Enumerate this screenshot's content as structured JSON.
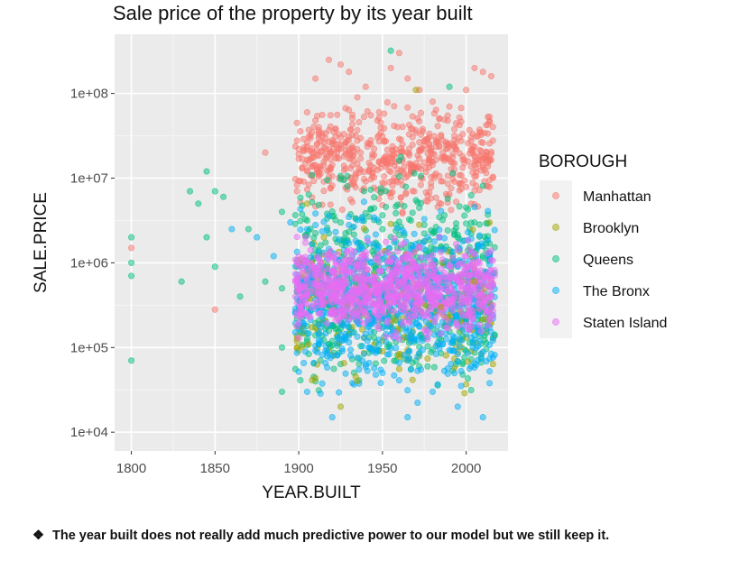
{
  "chart_data": {
    "type": "scatter",
    "title": "Sale price of the property by its year built",
    "xlabel": "YEAR.BUILT",
    "ylabel": "SALE.PRICE",
    "x_ticks": [
      1800,
      1850,
      1900,
      1950,
      2000
    ],
    "x_tick_labels": [
      "1800",
      "1850",
      "1900",
      "1950",
      "2000"
    ],
    "xlim": [
      1790,
      2025
    ],
    "y_scale": "log10",
    "y_ticks": [
      10000,
      100000,
      1000000,
      10000000,
      100000000
    ],
    "y_tick_labels": [
      "1e+04",
      "1e+05",
      "1e+06",
      "1e+07",
      "1e+08"
    ],
    "ylim": [
      6000,
      500000000
    ],
    "grid": true,
    "legend_title": "BOROUGH",
    "legend_position": "right",
    "series": [
      {
        "name": "Manhattan",
        "color": "#F8766D",
        "points": [
          [
            1800,
            1500000
          ],
          [
            1850,
            280000
          ],
          [
            1880,
            20000000
          ],
          [
            1905,
            60000000
          ],
          [
            1910,
            150000000
          ],
          [
            1918,
            250000000
          ],
          [
            1925,
            220000000
          ],
          [
            1930,
            180000000
          ],
          [
            1935,
            90000000
          ],
          [
            1940,
            120000000
          ],
          [
            1948,
            60000000
          ],
          [
            1955,
            200000000
          ],
          [
            1960,
            300000000
          ],
          [
            1965,
            150000000
          ],
          [
            1972,
            110000000
          ],
          [
            1980,
            80000000
          ],
          [
            1990,
            70000000
          ],
          [
            2000,
            110000000
          ],
          [
            2005,
            200000000
          ],
          [
            2010,
            180000000
          ],
          [
            2015,
            160000000
          ]
        ]
      },
      {
        "name": "Brooklyn",
        "color": "#A3A500",
        "points": [
          [
            1905,
            5000000
          ],
          [
            1915,
            2000000
          ],
          [
            1925,
            20000
          ],
          [
            1935,
            40000
          ],
          [
            1950,
            90000
          ],
          [
            1970,
            110000000
          ],
          [
            1985,
            300000
          ],
          [
            2005,
            600000
          ]
        ]
      },
      {
        "name": "Queens",
        "color": "#00BF7D",
        "points": [
          [
            1800,
            1000000
          ],
          [
            1800,
            700000
          ],
          [
            1800,
            2000000
          ],
          [
            1800,
            70000
          ],
          [
            1830,
            600000
          ],
          [
            1835,
            7000000
          ],
          [
            1840,
            5000000
          ],
          [
            1845,
            12000000
          ],
          [
            1845,
            2000000
          ],
          [
            1850,
            900000
          ],
          [
            1850,
            7000000
          ],
          [
            1855,
            6000000
          ],
          [
            1865,
            400000
          ],
          [
            1870,
            2500000
          ],
          [
            1880,
            600000
          ],
          [
            1890,
            100000
          ],
          [
            1890,
            30000
          ],
          [
            1890,
            500000
          ],
          [
            1890,
            4000000
          ],
          [
            1955,
            320000000
          ],
          [
            1990,
            120000000
          ]
        ]
      },
      {
        "name": "The Bronx",
        "color": "#00B0F6",
        "points": [
          [
            1860,
            2500000
          ],
          [
            1875,
            2000000
          ],
          [
            1885,
            1200000
          ],
          [
            1895,
            3000000
          ],
          [
            1905,
            30000
          ],
          [
            1920,
            15000
          ],
          [
            1935,
            200000
          ],
          [
            1950,
            50000
          ],
          [
            1965,
            15000
          ],
          [
            1980,
            30000
          ],
          [
            1995,
            20000
          ],
          [
            2010,
            15000
          ],
          [
            2015,
            300000
          ]
        ]
      },
      {
        "name": "Staten Island",
        "color": "#E76BF3",
        "points": [
          [
            1898,
            600000
          ],
          [
            1905,
            400000
          ],
          [
            1920,
            800000
          ],
          [
            1935,
            500000
          ],
          [
            1950,
            300000
          ],
          [
            1965,
            700000
          ],
          [
            1980,
            400000
          ],
          [
            1995,
            600000
          ],
          [
            2005,
            500000
          ],
          [
            2015,
            300000
          ]
        ]
      }
    ],
    "dense_bands": [
      {
        "series": "Manhattan",
        "x_range": [
          1898,
          2017
        ],
        "y_range": [
          3000000,
          100000000
        ]
      },
      {
        "series": "Queens",
        "x_range": [
          1898,
          2017
        ],
        "y_range": [
          10000,
          30000000
        ]
      },
      {
        "series": "Brooklyn",
        "x_range": [
          1898,
          2017
        ],
        "y_range": [
          20000,
          5000000
        ]
      },
      {
        "series": "The Bronx",
        "x_range": [
          1898,
          2017
        ],
        "y_range": [
          15000,
          8000000
        ]
      },
      {
        "series": "Staten Island",
        "x_range": [
          1898,
          2017
        ],
        "y_range": [
          100000,
          2500000
        ]
      }
    ]
  },
  "footnote": {
    "bullet": "❖",
    "text": "The year built does not really add much predictive power to our model but we still keep it."
  }
}
